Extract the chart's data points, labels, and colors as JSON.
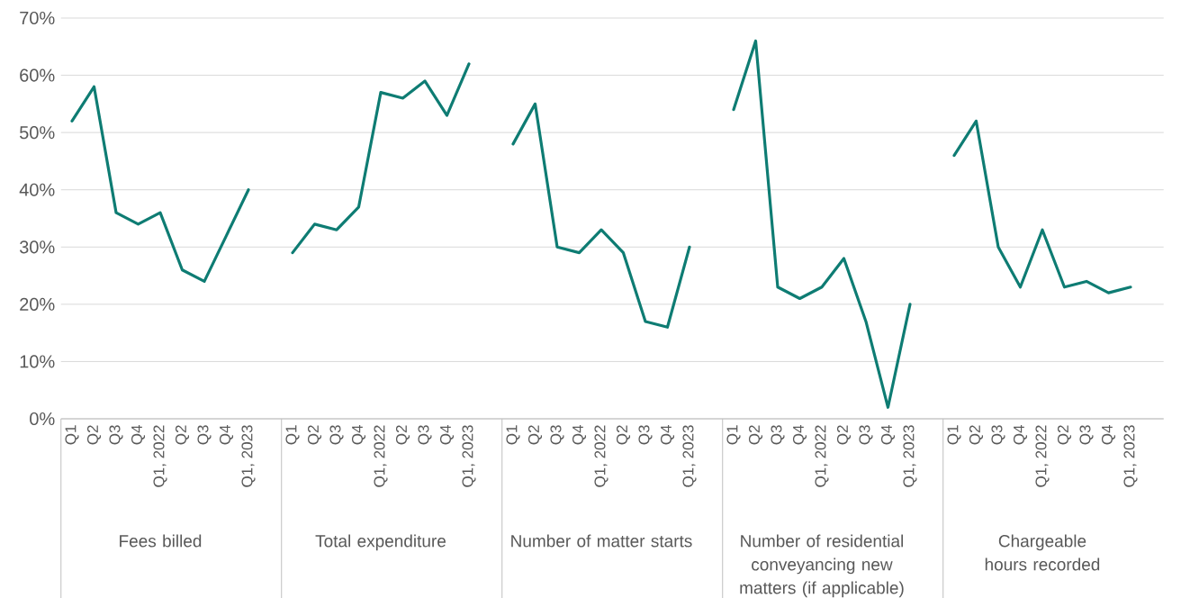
{
  "chart_data": {
    "type": "line",
    "categories": [
      "Q1",
      "Q2",
      "Q3",
      "Q4",
      "Q1, 2022",
      "Q2",
      "Q3",
      "Q4",
      "Q1, 2023",
      null,
      "Q1",
      "Q2",
      "Q3",
      "Q4",
      "Q1, 2022",
      "Q2",
      "Q3",
      "Q4",
      "Q1, 2023",
      null,
      "Q1",
      "Q2",
      "Q3",
      "Q4",
      "Q1, 2022",
      "Q2",
      "Q3",
      "Q4",
      "Q1, 2023",
      null,
      "Q1",
      "Q2",
      "Q3",
      "Q4",
      "Q1, 2022",
      "Q2",
      "Q3",
      "Q4",
      "Q1, 2023",
      null,
      "Q1",
      "Q2",
      "Q3",
      "Q4",
      "Q1, 2022",
      "Q2",
      "Q3",
      "Q4",
      "Q1, 2023",
      null
    ],
    "series": [
      {
        "color": "#0e7c73",
        "values": [
          52,
          58,
          36,
          34,
          36,
          26,
          24,
          32,
          40,
          null,
          29,
          34,
          33,
          37,
          57,
          56,
          59,
          53,
          62,
          null,
          48,
          55,
          30,
          29,
          33,
          29,
          17,
          16,
          30,
          null,
          54,
          66,
          23,
          21,
          23,
          28,
          17,
          2,
          20,
          null,
          46,
          52,
          30,
          23,
          33,
          23,
          24,
          22,
          23,
          null
        ]
      }
    ],
    "annotations": [
      "Fees billed",
      "Total expenditure",
      "Number of matter starts",
      "Number of residential conveyancing new matters (if applicable)",
      "Chargeable hours recorded"
    ],
    "ylim": [
      0,
      70
    ],
    "yticks": [
      {
        "value": 0,
        "label": "0%"
      },
      {
        "value": 10,
        "label": "10%"
      },
      {
        "value": 20,
        "label": "20%"
      },
      {
        "value": 30,
        "label": "30%"
      },
      {
        "value": 40,
        "label": "40%"
      },
      {
        "value": 50,
        "label": "50%"
      },
      {
        "value": 60,
        "label": "60%"
      },
      {
        "value": 70,
        "label": "70%"
      }
    ],
    "grid": "y"
  }
}
